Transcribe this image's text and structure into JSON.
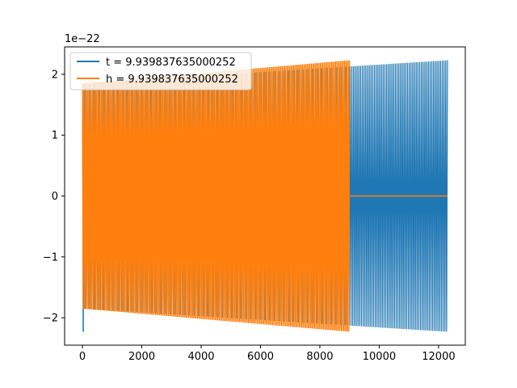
{
  "chart_data": {
    "type": "line",
    "title": "",
    "xlabel": "",
    "ylabel": "",
    "y_offset_label": "1e−22",
    "xlim": [
      -600,
      12900
    ],
    "ylim": [
      -2.45,
      2.45
    ],
    "x_ticks": [
      0,
      2000,
      4000,
      6000,
      8000,
      10000,
      12000
    ],
    "x_tick_labels": [
      "0",
      "2000",
      "4000",
      "6000",
      "8000",
      "10000",
      "12000"
    ],
    "y_ticks": [
      -2,
      -1,
      0,
      1,
      2
    ],
    "y_tick_labels": [
      "−2",
      "−1",
      "0",
      "1",
      "2"
    ],
    "grid": false,
    "legend_position": "upper-left",
    "series": [
      {
        "name": "t = 9.939837635000252",
        "color": "#1f77b4",
        "x_range": [
          0,
          12300
        ],
        "envelope_start": 1.85,
        "envelope_end": 2.23,
        "initial_spike": -2.23
      },
      {
        "name": "h = 9.939837635000252",
        "color": "#ff7f0e",
        "x_range": [
          0,
          9000
        ],
        "envelope_start": 1.85,
        "envelope_end": 2.23,
        "zero_until": 12300
      }
    ]
  }
}
